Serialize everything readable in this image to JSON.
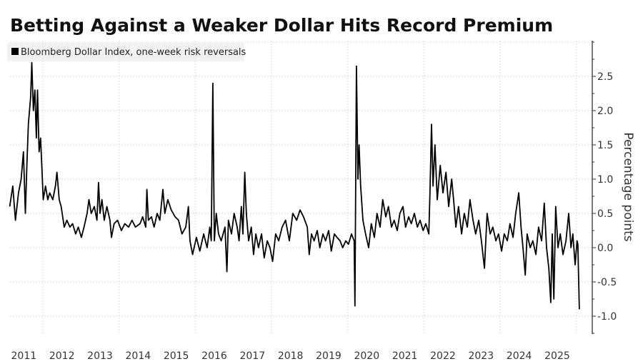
{
  "chart_data": {
    "type": "line",
    "title": "Betting Against a Weaker Dollar Hits Record Premium",
    "legend": [
      {
        "name": "Bloomberg Dollar Index, one-week risk reversals",
        "color": "#000000"
      }
    ],
    "legend_placement": "top-left",
    "xlabel": "",
    "ylabel": "Percentage points",
    "x_ticks": [
      "2011",
      "2012",
      "2013",
      "2014",
      "2015",
      "2016",
      "2017",
      "2018",
      "2019",
      "2020",
      "2021",
      "2022",
      "2023",
      "2024",
      "2025"
    ],
    "y_ticks": [
      "2.5",
      "2.0",
      "1.5",
      "1.0",
      "0.5",
      "0.0",
      "-0.5",
      "-1.0"
    ],
    "y_tick_values": [
      2.5,
      2.0,
      1.5,
      1.0,
      0.5,
      0.0,
      -0.5,
      -1.0
    ],
    "ylim": [
      -1.25,
      3.0
    ],
    "xlim": [
      2010.75,
      2026.3
    ],
    "grid": true,
    "line_color": "#000000",
    "series": [
      {
        "name": "Bloomberg Dollar Index, one-week risk reversals",
        "points": [
          [
            2011.13,
            0.6
          ],
          [
            2011.21,
            0.9
          ],
          [
            2011.28,
            0.4
          ],
          [
            2011.36,
            0.8
          ],
          [
            2011.43,
            1.0
          ],
          [
            2011.49,
            1.4
          ],
          [
            2011.54,
            0.5
          ],
          [
            2011.58,
            1.2
          ],
          [
            2011.62,
            1.8
          ],
          [
            2011.68,
            2.2
          ],
          [
            2011.71,
            2.7
          ],
          [
            2011.75,
            2.0
          ],
          [
            2011.79,
            2.3
          ],
          [
            2011.83,
            1.6
          ],
          [
            2011.86,
            2.3
          ],
          [
            2011.9,
            1.4
          ],
          [
            2011.94,
            1.6
          ],
          [
            2011.98,
            1.1
          ],
          [
            2012.01,
            0.7
          ],
          [
            2012.07,
            0.9
          ],
          [
            2012.13,
            0.7
          ],
          [
            2012.18,
            0.8
          ],
          [
            2012.26,
            0.7
          ],
          [
            2012.33,
            0.9
          ],
          [
            2012.37,
            1.1
          ],
          [
            2012.43,
            0.7
          ],
          [
            2012.48,
            0.6
          ],
          [
            2012.56,
            0.3
          ],
          [
            2012.63,
            0.4
          ],
          [
            2012.71,
            0.3
          ],
          [
            2012.78,
            0.35
          ],
          [
            2012.86,
            0.2
          ],
          [
            2012.93,
            0.3
          ],
          [
            2013.01,
            0.15
          ],
          [
            2013.08,
            0.3
          ],
          [
            2013.16,
            0.5
          ],
          [
            2013.21,
            0.7
          ],
          [
            2013.27,
            0.5
          ],
          [
            2013.35,
            0.6
          ],
          [
            2013.42,
            0.4
          ],
          [
            2013.46,
            0.95
          ],
          [
            2013.5,
            0.5
          ],
          [
            2013.55,
            0.7
          ],
          [
            2013.61,
            0.4
          ],
          [
            2013.68,
            0.6
          ],
          [
            2013.76,
            0.4
          ],
          [
            2013.8,
            0.15
          ],
          [
            2013.87,
            0.35
          ],
          [
            2013.96,
            0.4
          ],
          [
            2014.06,
            0.25
          ],
          [
            2014.15,
            0.35
          ],
          [
            2014.25,
            0.3
          ],
          [
            2014.34,
            0.4
          ],
          [
            2014.43,
            0.3
          ],
          [
            2014.55,
            0.35
          ],
          [
            2014.62,
            0.45
          ],
          [
            2014.7,
            0.3
          ],
          [
            2014.73,
            0.85
          ],
          [
            2014.77,
            0.4
          ],
          [
            2014.85,
            0.45
          ],
          [
            2014.92,
            0.3
          ],
          [
            2015.0,
            0.5
          ],
          [
            2015.07,
            0.4
          ],
          [
            2015.15,
            0.85
          ],
          [
            2015.2,
            0.5
          ],
          [
            2015.28,
            0.7
          ],
          [
            2015.37,
            0.55
          ],
          [
            2015.47,
            0.45
          ],
          [
            2015.56,
            0.4
          ],
          [
            2015.65,
            0.2
          ],
          [
            2015.75,
            0.3
          ],
          [
            2015.82,
            0.6
          ],
          [
            2015.86,
            0.1
          ],
          [
            2015.93,
            -0.1
          ],
          [
            2016.03,
            0.15
          ],
          [
            2016.12,
            -0.05
          ],
          [
            2016.22,
            0.2
          ],
          [
            2016.31,
            0.0
          ],
          [
            2016.38,
            0.3
          ],
          [
            2016.42,
            0.1
          ],
          [
            2016.46,
            2.4
          ],
          [
            2016.5,
            0.1
          ],
          [
            2016.55,
            0.5
          ],
          [
            2016.61,
            0.2
          ],
          [
            2016.68,
            0.1
          ],
          [
            2016.78,
            0.3
          ],
          [
            2016.83,
            -0.35
          ],
          [
            2016.87,
            0.4
          ],
          [
            2016.95,
            0.2
          ],
          [
            2017.02,
            0.5
          ],
          [
            2017.1,
            0.3
          ],
          [
            2017.15,
            0.1
          ],
          [
            2017.21,
            0.6
          ],
          [
            2017.25,
            0.2
          ],
          [
            2017.3,
            1.1
          ],
          [
            2017.34,
            0.5
          ],
          [
            2017.4,
            0.1
          ],
          [
            2017.47,
            0.3
          ],
          [
            2017.53,
            -0.1
          ],
          [
            2017.59,
            0.2
          ],
          [
            2017.66,
            0.0
          ],
          [
            2017.74,
            0.2
          ],
          [
            2017.81,
            -0.15
          ],
          [
            2017.89,
            0.1
          ],
          [
            2017.96,
            0.0
          ],
          [
            2018.03,
            -0.2
          ],
          [
            2018.11,
            0.2
          ],
          [
            2018.19,
            0.1
          ],
          [
            2018.28,
            0.3
          ],
          [
            2018.37,
            0.4
          ],
          [
            2018.47,
            0.1
          ],
          [
            2018.56,
            0.5
          ],
          [
            2018.66,
            0.4
          ],
          [
            2018.75,
            0.55
          ],
          [
            2018.84,
            0.45
          ],
          [
            2018.94,
            0.3
          ],
          [
            2018.99,
            -0.1
          ],
          [
            2019.05,
            0.2
          ],
          [
            2019.12,
            0.1
          ],
          [
            2019.2,
            0.25
          ],
          [
            2019.27,
            0.0
          ],
          [
            2019.35,
            0.2
          ],
          [
            2019.42,
            0.1
          ],
          [
            2019.5,
            0.25
          ],
          [
            2019.57,
            -0.05
          ],
          [
            2019.65,
            0.2
          ],
          [
            2019.72,
            0.15
          ],
          [
            2019.8,
            0.1
          ],
          [
            2019.87,
            0.0
          ],
          [
            2019.95,
            0.1
          ],
          [
            2020.02,
            0.05
          ],
          [
            2020.1,
            0.2
          ],
          [
            2020.17,
            0.1
          ],
          [
            2020.19,
            -0.85
          ],
          [
            2020.23,
            2.65
          ],
          [
            2020.27,
            1.0
          ],
          [
            2020.3,
            1.5
          ],
          [
            2020.34,
            0.9
          ],
          [
            2020.4,
            0.4
          ],
          [
            2020.47,
            0.2
          ],
          [
            2020.55,
            0.0
          ],
          [
            2020.62,
            0.35
          ],
          [
            2020.7,
            0.15
          ],
          [
            2020.77,
            0.5
          ],
          [
            2020.85,
            0.3
          ],
          [
            2020.92,
            0.7
          ],
          [
            2021.0,
            0.45
          ],
          [
            2021.07,
            0.6
          ],
          [
            2021.15,
            0.3
          ],
          [
            2021.22,
            0.4
          ],
          [
            2021.3,
            0.25
          ],
          [
            2021.37,
            0.5
          ],
          [
            2021.45,
            0.6
          ],
          [
            2021.52,
            0.3
          ],
          [
            2021.6,
            0.45
          ],
          [
            2021.67,
            0.35
          ],
          [
            2021.75,
            0.5
          ],
          [
            2021.83,
            0.3
          ],
          [
            2021.9,
            0.4
          ],
          [
            2021.98,
            0.25
          ],
          [
            2022.05,
            0.35
          ],
          [
            2022.13,
            0.2
          ],
          [
            2022.16,
            0.8
          ],
          [
            2022.2,
            1.8
          ],
          [
            2022.24,
            0.9
          ],
          [
            2022.29,
            1.5
          ],
          [
            2022.35,
            0.7
          ],
          [
            2022.43,
            1.2
          ],
          [
            2022.5,
            0.8
          ],
          [
            2022.58,
            1.1
          ],
          [
            2022.65,
            0.6
          ],
          [
            2022.73,
            1.0
          ],
          [
            2022.78,
            0.7
          ],
          [
            2022.84,
            0.3
          ],
          [
            2022.91,
            0.6
          ],
          [
            2022.99,
            0.2
          ],
          [
            2023.06,
            0.5
          ],
          [
            2023.14,
            0.3
          ],
          [
            2023.21,
            0.7
          ],
          [
            2023.29,
            0.4
          ],
          [
            2023.36,
            0.2
          ],
          [
            2023.44,
            0.4
          ],
          [
            2023.51,
            0.1
          ],
          [
            2023.59,
            -0.3
          ],
          [
            2023.66,
            0.5
          ],
          [
            2023.74,
            0.2
          ],
          [
            2023.81,
            0.3
          ],
          [
            2023.89,
            0.1
          ],
          [
            2023.96,
            0.2
          ],
          [
            2024.04,
            -0.05
          ],
          [
            2024.11,
            0.2
          ],
          [
            2024.19,
            0.1
          ],
          [
            2024.26,
            0.35
          ],
          [
            2024.34,
            0.15
          ],
          [
            2024.41,
            0.5
          ],
          [
            2024.49,
            0.8
          ],
          [
            2024.55,
            0.3
          ],
          [
            2024.6,
            0.0
          ],
          [
            2024.66,
            -0.4
          ],
          [
            2024.71,
            0.2
          ],
          [
            2024.79,
            0.0
          ],
          [
            2024.86,
            0.1
          ],
          [
            2024.94,
            -0.1
          ],
          [
            2025.01,
            0.3
          ],
          [
            2025.09,
            0.1
          ],
          [
            2025.16,
            0.65
          ],
          [
            2025.22,
            0.0
          ],
          [
            2025.28,
            -0.3
          ],
          [
            2025.33,
            -0.8
          ],
          [
            2025.37,
            0.2
          ],
          [
            2025.41,
            -0.75
          ],
          [
            2025.46,
            0.6
          ],
          [
            2025.52,
            0.0
          ],
          [
            2025.58,
            0.2
          ],
          [
            2025.65,
            -0.1
          ],
          [
            2025.73,
            0.1
          ],
          [
            2025.8,
            0.5
          ],
          [
            2025.86,
            0.0
          ],
          [
            2025.91,
            0.2
          ],
          [
            2025.97,
            -0.25
          ],
          [
            2026.02,
            0.1
          ],
          [
            2026.04,
            0.05
          ],
          [
            2026.08,
            -0.9
          ]
        ]
      }
    ]
  }
}
